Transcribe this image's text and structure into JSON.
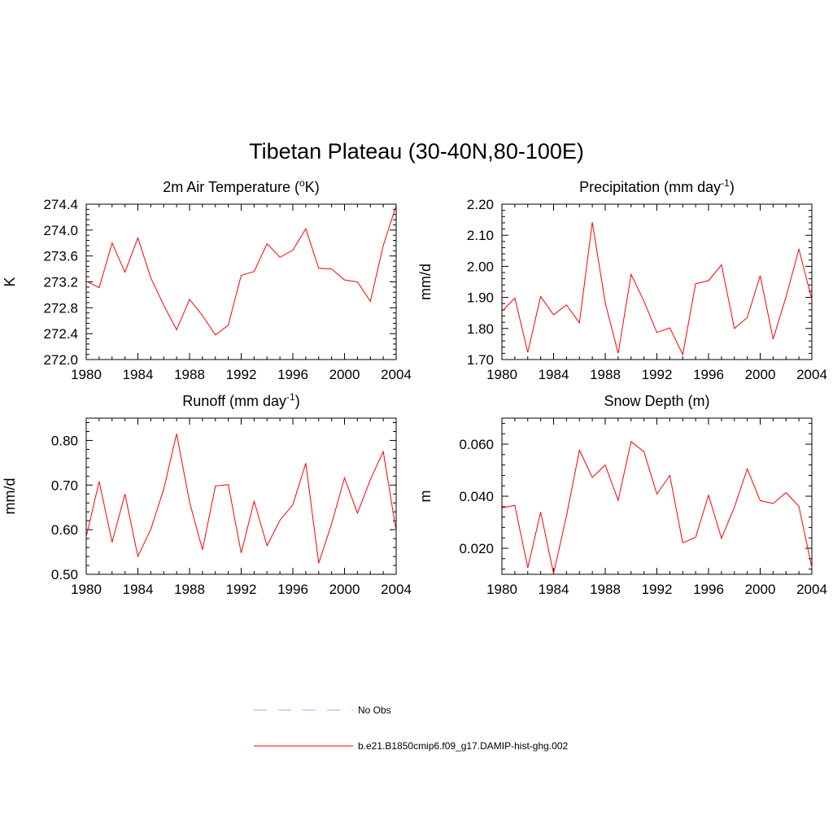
{
  "title": "Tibetan Plateau (30-40N,80-100E)",
  "legend": [
    {
      "label": "No Obs",
      "color": "#a0a0ff",
      "style": "dashed"
    },
    {
      "label": "b.e21.B1850cmip6.f09_g17.DAMIP-hist-ghg.002",
      "color": "#ff0000",
      "style": "solid"
    }
  ],
  "chart_data": [
    {
      "type": "line",
      "title": "2m Air Temperature (",
      "title_sup": "o",
      "title_tail": "K)",
      "ylabel": "K",
      "x": [
        1980,
        1981,
        1982,
        1983,
        1984,
        1985,
        1986,
        1987,
        1988,
        1989,
        1990,
        1991,
        1992,
        1993,
        1994,
        1995,
        1996,
        1997,
        1998,
        1999,
        2000,
        2001,
        2002,
        2003,
        2004
      ],
      "xlim": [
        1980,
        2004
      ],
      "xticks": [
        "1980",
        "1984",
        "1988",
        "1992",
        "1996",
        "2000",
        "2004"
      ],
      "ylim": [
        272.0,
        274.4
      ],
      "yticks": [
        "272.0",
        "272.4",
        "272.8",
        "273.2",
        "273.6",
        "274.0",
        "274.4"
      ],
      "series": [
        {
          "color": "#ff0000",
          "values": [
            273.21,
            273.11,
            273.8,
            273.35,
            273.88,
            273.26,
            272.84,
            272.46,
            272.93,
            272.68,
            272.38,
            272.53,
            273.3,
            273.36,
            273.79,
            273.58,
            273.69,
            274.02,
            273.41,
            273.4,
            273.23,
            273.2,
            272.9,
            273.76,
            274.38
          ]
        }
      ]
    },
    {
      "type": "line",
      "title": "Precipitation (mm day",
      "title_sup": "-1",
      "title_tail": ")",
      "ylabel": "mm/d",
      "x": [
        1980,
        1981,
        1982,
        1983,
        1984,
        1985,
        1986,
        1987,
        1988,
        1989,
        1990,
        1991,
        1992,
        1993,
        1994,
        1995,
        1996,
        1997,
        1998,
        1999,
        2000,
        2001,
        2002,
        2003,
        2004
      ],
      "xlim": [
        1980,
        2004
      ],
      "xticks": [
        "1980",
        "1984",
        "1988",
        "1992",
        "1996",
        "2000",
        "2004"
      ],
      "ylim": [
        1.7,
        2.2
      ],
      "yticks": [
        "1.70",
        "1.80",
        "1.90",
        "2.00",
        "2.10",
        "2.20"
      ],
      "series": [
        {
          "color": "#ff0000",
          "values": [
            1.855,
            1.898,
            1.723,
            1.903,
            1.844,
            1.876,
            1.818,
            2.142,
            1.883,
            1.72,
            1.974,
            1.888,
            1.787,
            1.802,
            1.716,
            1.944,
            1.954,
            2.005,
            1.8,
            1.835,
            1.97,
            1.766,
            1.902,
            2.055,
            1.893
          ]
        }
      ]
    },
    {
      "type": "line",
      "title": "Runoff (mm day",
      "title_sup": "-1",
      "title_tail": ")",
      "ylabel": "mm/d",
      "x": [
        1980,
        1981,
        1982,
        1983,
        1984,
        1985,
        1986,
        1987,
        1988,
        1989,
        1990,
        1991,
        1992,
        1993,
        1994,
        1995,
        1996,
        1997,
        1998,
        1999,
        2000,
        2001,
        2002,
        2003,
        2004
      ],
      "xlim": [
        1980,
        2004
      ],
      "xticks": [
        "1980",
        "1984",
        "1988",
        "1992",
        "1996",
        "2000",
        "2004"
      ],
      "ylim": [
        0.5,
        0.85
      ],
      "yticks": [
        "0.50",
        "0.60",
        "0.70",
        "0.80"
      ],
      "series": [
        {
          "color": "#ff0000",
          "values": [
            0.584,
            0.708,
            0.572,
            0.68,
            0.54,
            0.601,
            0.691,
            0.815,
            0.662,
            0.555,
            0.698,
            0.701,
            0.548,
            0.664,
            0.564,
            0.621,
            0.656,
            0.749,
            0.525,
            0.613,
            0.716,
            0.637,
            0.712,
            0.775,
            0.597
          ]
        }
      ]
    },
    {
      "type": "line",
      "title": "Snow Depth (m)",
      "title_sup": "",
      "title_tail": "",
      "ylabel": "m",
      "x": [
        1980,
        1981,
        1982,
        1983,
        1984,
        1985,
        1986,
        1987,
        1988,
        1989,
        1990,
        1991,
        1992,
        1993,
        1994,
        1995,
        1996,
        1997,
        1998,
        1999,
        2000,
        2001,
        2002,
        2003,
        2004
      ],
      "xlim": [
        1980,
        2004
      ],
      "xticks": [
        "1980",
        "1984",
        "1988",
        "1992",
        "1996",
        "2000",
        "2004"
      ],
      "ylim": [
        0.01,
        0.07
      ],
      "yticks": [
        "0.020",
        "0.040",
        "0.060"
      ],
      "series": [
        {
          "color": "#ff0000",
          "values": [
            0.0355,
            0.0365,
            0.0125,
            0.0339,
            0.0103,
            0.0325,
            0.0577,
            0.0472,
            0.052,
            0.0384,
            0.061,
            0.0571,
            0.0408,
            0.048,
            0.0221,
            0.0242,
            0.0404,
            0.0238,
            0.0358,
            0.0505,
            0.0383,
            0.0372,
            0.0414,
            0.0361,
            0.0125
          ]
        }
      ]
    }
  ]
}
